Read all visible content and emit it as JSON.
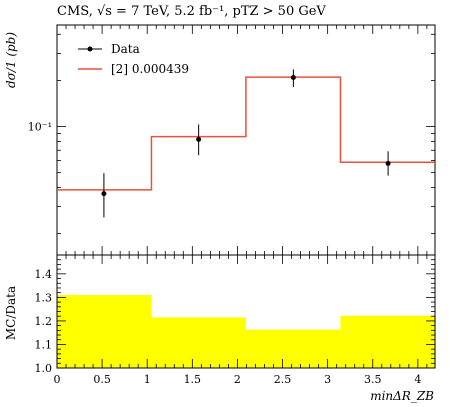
{
  "header": {
    "title": "CMS, √s = 7 TeV, 5.2 fb⁻¹, pTZ > 50 GeV"
  },
  "legend": {
    "data_label": "Data",
    "mc_label": "[2] 0.000439",
    "placement": "top-left"
  },
  "colors": {
    "mc_line": "#e8513a",
    "ratio_band": "#ffff00",
    "frame": "#000000"
  },
  "chart_data": [
    {
      "type": "line",
      "title": "CMS, √s = 7 TeV, 5.2 fb⁻¹, pTZ > 50 GeV",
      "ylabel": "dσ/1 (pb)",
      "xlabel": "",
      "yscale": "log",
      "xlim": [
        0,
        4.19
      ],
      "ylim": [
        0.0145,
        0.46
      ],
      "yticks": [
        {
          "value": 0.1,
          "label": "10⁻¹"
        }
      ],
      "bin_edges": [
        0,
        1.047,
        2.094,
        3.142,
        4.189
      ],
      "series": [
        {
          "name": "Data",
          "kind": "points",
          "x": [
            0.52,
            1.57,
            2.62,
            3.67
          ],
          "y": [
            0.0365,
            0.0824,
            0.209,
            0.0575
          ],
          "yerr_low": [
            0.0365,
            0.0824,
            0.209,
            0.0575
          ],
          "yerr_high": [
            0.0365,
            0.0824,
            0.209,
            0.0575
          ],
          "err_low": [
            0.0255,
            0.065,
            0.181,
            0.0478
          ],
          "err_high": [
            0.0496,
            0.1032,
            0.236,
            0.0689
          ]
        },
        {
          "name": "[2] 0.000439",
          "kind": "step",
          "values": [
            0.0386,
            0.086,
            0.21,
            0.0585
          ]
        }
      ],
      "grid": false
    },
    {
      "type": "area",
      "ylabel": "MC/Data",
      "xlabel": "minΔR_ZB",
      "xlim": [
        0,
        4.19
      ],
      "ylim": [
        1.0,
        1.48
      ],
      "xticks": [
        0,
        0.5,
        1,
        1.5,
        2,
        2.5,
        3,
        3.5,
        4
      ],
      "xtick_labels": [
        "0",
        "0.5",
        "1",
        "1.5",
        "2",
        "2.5",
        "3",
        "3.5",
        "4"
      ],
      "yticks": [
        1.0,
        1.1,
        1.2,
        1.3,
        1.4
      ],
      "ytick_labels": [
        "1.0",
        "1.1",
        "1.2",
        "1.3",
        "1.4"
      ],
      "bin_edges": [
        0,
        1.047,
        2.094,
        3.142,
        4.189
      ],
      "series": [
        {
          "name": "",
          "kind": "band",
          "low": [
            1.0,
            1.0,
            1.0,
            1.0
          ],
          "high": [
            1.31,
            1.215,
            1.163,
            1.222
          ]
        }
      ],
      "grid": false
    }
  ]
}
